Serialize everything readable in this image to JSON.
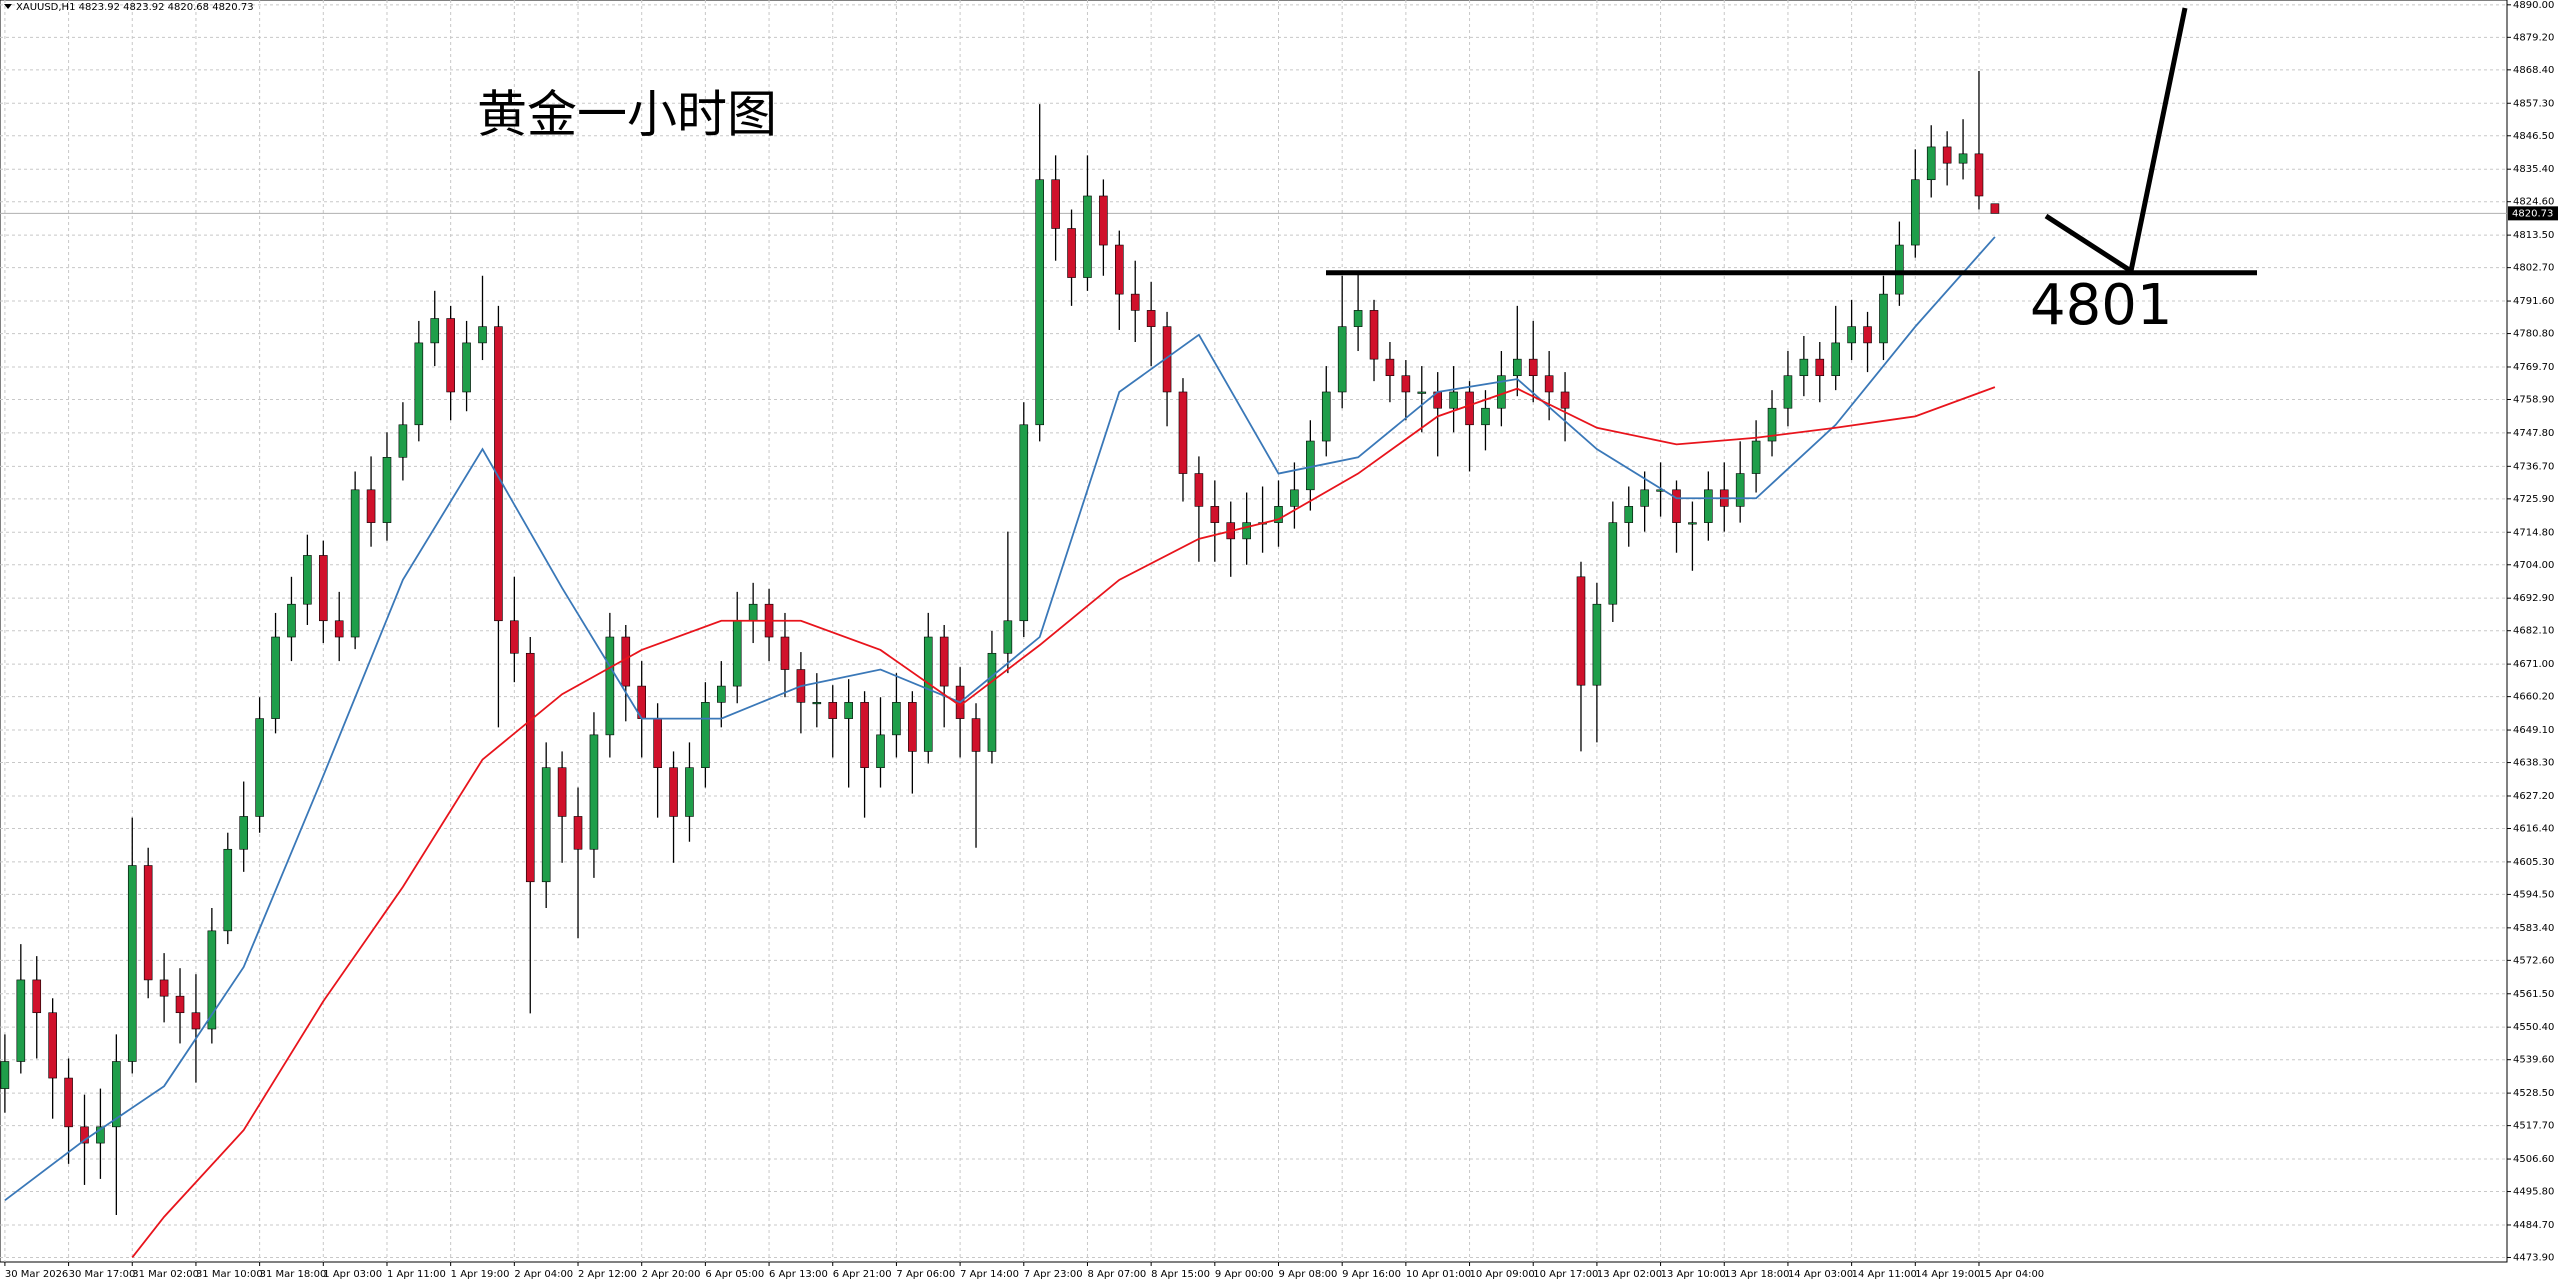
{
  "header": "XAUUSD,H1  4823.92 4823.92 4820.68 4820.73",
  "chart_data": {
    "type": "candlestick",
    "title": "黄金一小时图",
    "level": 4801,
    "current_price": 4820.73,
    "up_color": "#1f9e4a",
    "down_color": "#d0112b",
    "grid": true,
    "ylim": [
      4472.4,
      4891.6
    ],
    "yticks": [
      {
        "value": 4890.0,
        "label": "4890.00"
      },
      {
        "value": 4879.2,
        "label": "4879.20"
      },
      {
        "value": 4868.4,
        "label": "4868.40"
      },
      {
        "value": 4857.3,
        "label": "4857.30"
      },
      {
        "value": 4846.5,
        "label": "4846.50"
      },
      {
        "value": 4835.4,
        "label": "4835.40"
      },
      {
        "value": 4824.6,
        "label": "4824.60"
      },
      {
        "value": 4813.5,
        "label": "4813.50"
      },
      {
        "value": 4802.7,
        "label": "4802.70"
      },
      {
        "value": 4791.6,
        "label": "4791.60"
      },
      {
        "value": 4780.8,
        "label": "4780.80"
      },
      {
        "value": 4769.7,
        "label": "4769.70"
      },
      {
        "value": 4758.9,
        "label": "4758.90"
      },
      {
        "value": 4747.8,
        "label": "4747.80"
      },
      {
        "value": 4736.7,
        "label": "4736.70"
      },
      {
        "value": 4725.9,
        "label": "4725.90"
      },
      {
        "value": 4714.8,
        "label": "4714.80"
      },
      {
        "value": 4704.0,
        "label": "4704.00"
      },
      {
        "value": 4692.9,
        "label": "4692.90"
      },
      {
        "value": 4682.1,
        "label": "4682.10"
      },
      {
        "value": 4671.0,
        "label": "4671.00"
      },
      {
        "value": 4660.2,
        "label": "4660.20"
      },
      {
        "value": 4649.1,
        "label": "4649.10"
      },
      {
        "value": 4638.3,
        "label": "4638.30"
      },
      {
        "value": 4627.2,
        "label": "4627.20"
      },
      {
        "value": 4616.4,
        "label": "4616.40"
      },
      {
        "value": 4605.3,
        "label": "4605.30"
      },
      {
        "value": 4594.5,
        "label": "4594.50"
      },
      {
        "value": 4583.4,
        "label": "4583.40"
      },
      {
        "value": 4572.6,
        "label": "4572.60"
      },
      {
        "value": 4561.5,
        "label": "4561.50"
      },
      {
        "value": 4550.4,
        "label": "4550.40"
      },
      {
        "value": 4539.6,
        "label": "4539.60"
      },
      {
        "value": 4528.5,
        "label": "4528.50"
      },
      {
        "value": 4517.7,
        "label": "4517.70"
      },
      {
        "value": 4506.6,
        "label": "4506.60"
      },
      {
        "value": 4495.8,
        "label": "4495.80"
      },
      {
        "value": 4484.7,
        "label": "4484.70"
      },
      {
        "value": 4473.9,
        "label": "4473.90"
      }
    ],
    "categories": [
      "30 Mar 2026",
      null,
      null,
      null,
      "30 Mar 17:00",
      null,
      null,
      null,
      "31 Mar 02:00",
      null,
      null,
      null,
      "31 Mar 10:00",
      null,
      null,
      null,
      "31 Mar 18:00",
      null,
      null,
      null,
      "1 Apr 03:00",
      null,
      null,
      null,
      "1 Apr 11:00",
      null,
      null,
      null,
      "1 Apr 19:00",
      null,
      null,
      null,
      "2 Apr 04:00",
      null,
      null,
      null,
      "2 Apr 12:00",
      null,
      null,
      null,
      "2 Apr 20:00",
      null,
      null,
      null,
      "6 Apr 05:00",
      null,
      null,
      null,
      "6 Apr 13:00",
      null,
      null,
      null,
      "6 Apr 21:00",
      null,
      null,
      null,
      "7 Apr 06:00",
      null,
      null,
      null,
      "7 Apr 14:00",
      null,
      null,
      null,
      "7 Apr 23:00",
      null,
      null,
      null,
      "8 Apr 07:00",
      null,
      null,
      null,
      "8 Apr 15:00",
      null,
      null,
      null,
      "9 Apr 00:00",
      null,
      null,
      null,
      "9 Apr 08:00",
      null,
      null,
      null,
      "9 Apr 16:00",
      null,
      null,
      null,
      "10 Apr 01:00",
      null,
      null,
      null,
      "10 Apr 09:00",
      null,
      null,
      null,
      "10 Apr 17:00",
      null,
      null,
      null,
      "13 Apr 02:00",
      null,
      null,
      null,
      "13 Apr 10:00",
      null,
      null,
      null,
      "13 Apr 18:00",
      null,
      null,
      null,
      "14 Apr 03:00",
      null,
      null,
      null,
      "14 Apr 11:00",
      null,
      null,
      null,
      "14 Apr 19:00",
      null,
      null,
      null,
      "15 Apr 04:00",
      null
    ],
    "open": [
      4530.0,
      4539.0,
      4566.1,
      4555.2,
      4533.5,
      4517.3,
      4511.9,
      4517.3,
      4539.0,
      4604.1,
      4566.1,
      4560.7,
      4555.2,
      4549.8,
      4582.4,
      4609.5,
      4620.4,
      4652.9,
      4680.0,
      4690.9,
      4707.1,
      4685.4,
      4680.0,
      4728.9,
      4718.0,
      4739.7,
      4750.5,
      4777.7,
      4785.8,
      4761.4,
      4777.7,
      4783.1,
      4685.4,
      4674.6,
      4598.7,
      4636.6,
      4620.4,
      4609.5,
      4647.5,
      4680.0,
      4663.7,
      4652.9,
      4636.6,
      4620.4,
      4636.6,
      4658.3,
      4663.7,
      4685.4,
      4690.9,
      4680.0,
      4669.2,
      4658.3,
      4658.3,
      4652.9,
      4658.3,
      4636.6,
      4647.5,
      4658.3,
      4642.0,
      4680.0,
      4663.7,
      4652.9,
      4642.0,
      4674.6,
      4685.4,
      4750.5,
      4831.9,
      4815.7,
      4799.4,
      4826.5,
      4810.2,
      4793.9,
      4788.5,
      4783.1,
      4761.4,
      4734.3,
      4723.4,
      4718.0,
      4712.6,
      4718.0,
      4718.0,
      4723.4,
      4728.9,
      4745.1,
      4761.4,
      4783.1,
      4788.5,
      4772.3,
      4766.8,
      4761.4,
      4761.4,
      4756.0,
      4761.4,
      4750.5,
      4756.0,
      4766.8,
      4772.3,
      4766.8,
      4761.4,
      4700.0,
      4664.0,
      4690.9,
      4718.0,
      4723.4,
      4728.9,
      4728.9,
      4718.0,
      4718.0,
      4728.9,
      4723.4,
      4734.3,
      4745.1,
      4756.0,
      4766.8,
      4772.3,
      4766.8,
      4777.7,
      4783.1,
      4777.7,
      4793.9,
      4810.2,
      4831.9,
      4842.8,
      4837.4,
      4840.5,
      4823.92
    ],
    "high": [
      4548,
      4578,
      4574,
      4560,
      4540,
      4528,
      4530,
      4548,
      4620,
      4610,
      4575,
      4570,
      4568,
      4590,
      4615,
      4632,
      4660,
      4688,
      4700,
      4714,
      4712,
      4695,
      4735,
      4740,
      4748,
      4758,
      4785,
      4795,
      4790,
      4785,
      4800,
      4790,
      4700,
      4680,
      4645,
      4642,
      4630,
      4655,
      4688,
      4684,
      4672,
      4658,
      4642,
      4645,
      4665,
      4672,
      4695,
      4698,
      4696,
      4688,
      4675,
      4668,
      4664,
      4666,
      4662,
      4660,
      4668,
      4662,
      4688,
      4684,
      4670,
      4658,
      4682,
      4715,
      4758,
      4857,
      4840,
      4822,
      4840,
      4832,
      4815,
      4805,
      4798,
      4788,
      4766,
      4740,
      4732,
      4725,
      4728,
      4730,
      4732,
      4738,
      4752,
      4770,
      4800,
      4801,
      4792,
      4778,
      4772,
      4770,
      4768,
      4770,
      4765,
      4762,
      4775,
      4790,
      4785,
      4775,
      4768,
      4705,
      4698,
      4725,
      4730,
      4735,
      4738,
      4732,
      4725,
      4735,
      4738,
      4745,
      4752,
      4762,
      4775,
      4780,
      4778,
      4790,
      4792,
      4788,
      4800,
      4818,
      4842,
      4850,
      4848,
      4852,
      4868,
      4823.92
    ],
    "low": [
      4522,
      4535,
      4540,
      4520,
      4505,
      4498,
      4500,
      4488,
      4535,
      4560,
      4552,
      4545,
      4532,
      4545,
      4578,
      4602,
      4615,
      4648,
      4672,
      4684,
      4678,
      4672,
      4676,
      4710,
      4712,
      4732,
      4745,
      4770,
      4752,
      4755,
      4772,
      4650,
      4665,
      4555,
      4590,
      4605,
      4580,
      4600,
      4640,
      4652,
      4640,
      4620,
      4605,
      4612,
      4630,
      4650,
      4658,
      4678,
      4672,
      4660,
      4648,
      4650,
      4640,
      4630,
      4620,
      4630,
      4640,
      4628,
      4638,
      4650,
      4640,
      4610,
      4638,
      4668,
      4680,
      4745,
      4805,
      4790,
      4795,
      4800,
      4782,
      4778,
      4770,
      4750,
      4725,
      4705,
      4705,
      4700,
      4704,
      4708,
      4710,
      4716,
      4722,
      4740,
      4756,
      4775,
      4765,
      4758,
      4752,
      4748,
      4740,
      4748,
      4735,
      4742,
      4750,
      4760,
      4758,
      4752,
      4745,
      4642,
      4645,
      4685,
      4710,
      4715,
      4720,
      4708,
      4702,
      4712,
      4715,
      4718,
      4728,
      4740,
      4750,
      4760,
      4758,
      4762,
      4772,
      4768,
      4772,
      4790,
      4806,
      4826,
      4830,
      4832,
      4822,
      4820.68
    ],
    "close": [
      4539.0,
      4566.1,
      4555.2,
      4533.5,
      4517.3,
      4511.9,
      4517.3,
      4539.0,
      4604.1,
      4566.1,
      4560.7,
      4555.2,
      4549.8,
      4582.4,
      4609.5,
      4620.4,
      4652.9,
      4680.0,
      4690.9,
      4707.1,
      4685.4,
      4680.0,
      4728.9,
      4718.0,
      4739.7,
      4750.5,
      4777.7,
      4785.8,
      4761.4,
      4777.7,
      4783.1,
      4685.4,
      4674.6,
      4598.7,
      4636.6,
      4620.4,
      4609.5,
      4647.5,
      4680.0,
      4663.7,
      4652.9,
      4636.6,
      4620.4,
      4636.6,
      4658.3,
      4663.7,
      4685.4,
      4690.9,
      4680.0,
      4669.2,
      4658.3,
      4658.3,
      4652.9,
      4658.3,
      4636.6,
      4647.5,
      4658.3,
      4642.0,
      4680.0,
      4663.7,
      4652.9,
      4642.0,
      4674.6,
      4685.4,
      4750.5,
      4831.9,
      4815.7,
      4799.4,
      4826.5,
      4810.2,
      4793.9,
      4788.5,
      4783.1,
      4761.4,
      4734.3,
      4723.4,
      4718.0,
      4712.6,
      4718.0,
      4718.0,
      4723.4,
      4728.9,
      4745.1,
      4761.4,
      4783.1,
      4788.5,
      4772.3,
      4766.8,
      4761.4,
      4761.4,
      4756.0,
      4761.4,
      4750.5,
      4756.0,
      4766.8,
      4772.3,
      4766.8,
      4761.4,
      4756.0,
      4664.0,
      4690.9,
      4718.0,
      4723.4,
      4728.9,
      4728.9,
      4718.0,
      4718.0,
      4728.9,
      4723.4,
      4734.3,
      4745.1,
      4756.0,
      4766.8,
      4772.3,
      4766.8,
      4777.7,
      4783.1,
      4777.7,
      4793.9,
      4810.2,
      4831.9,
      4842.8,
      4837.4,
      4840.5,
      4826.5,
      4820.73
    ],
    "moving_averages": [
      {
        "color": "#3a78b8",
        "x": [
          0,
          5,
          10,
          15,
          20,
          25,
          30,
          35,
          40,
          45,
          50,
          55,
          60,
          65,
          70,
          75,
          80,
          85,
          90,
          95,
          100,
          105,
          110,
          115,
          120,
          125
        ],
        "values": [
          4492.9,
          4512.9,
          4530.8,
          4570.4,
          4633.9,
          4699.0,
          4742.4,
          4696.3,
          4652.9,
          4652.9,
          4663.7,
          4669.2,
          4658.3,
          4680.0,
          4761.4,
          4780.4,
          4734.3,
          4739.7,
          4761.4,
          4765.7,
          4742.4,
          4726.1,
          4726.1,
          4750.5,
          4783.1,
          4812.9
        ]
      },
      {
        "color": "#e8141c",
        "x": [
          8,
          10,
          15,
          20,
          25,
          30,
          35,
          40,
          45,
          50,
          55,
          60,
          65,
          70,
          75,
          80,
          85,
          90,
          95,
          100,
          105,
          110,
          115,
          120,
          125
        ],
        "values": [
          4473.9,
          4487.4,
          4516.2,
          4559.0,
          4597.0,
          4639.3,
          4661.0,
          4675.7,
          4685.4,
          4685.4,
          4675.7,
          4657.2,
          4677.3,
          4699.0,
          4712.6,
          4719.1,
          4734.3,
          4753.3,
          4762.5,
          4749.5,
          4744.0,
          4746.2,
          4749.5,
          4753.3,
          4763.0
        ]
      }
    ]
  }
}
